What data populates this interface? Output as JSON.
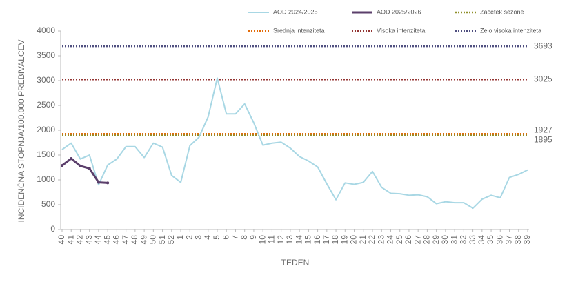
{
  "chart_data": {
    "type": "line",
    "ylabel": "INCIDENČNA  STOPNJA/100.000  PREBIVALCEV",
    "xlabel": "TEDEN",
    "categories": [
      "40",
      "41",
      "42",
      "43",
      "44",
      "45",
      "46",
      "47",
      "48",
      "49",
      "50",
      "51",
      "52",
      "1",
      "2",
      "3",
      "4",
      "5",
      "6",
      "7",
      "8",
      "9",
      "10",
      "11",
      "12",
      "13",
      "14",
      "15",
      "16",
      "17",
      "18",
      "19",
      "20",
      "21",
      "22",
      "23",
      "24",
      "25",
      "26",
      "27",
      "28",
      "29",
      "30",
      "31",
      "32",
      "33",
      "34",
      "35",
      "36",
      "37",
      "38",
      "39"
    ],
    "series": [
      {
        "name": "AOD 2024/2025",
        "color": "#a8d7e4",
        "width": 2,
        "values": [
          1610,
          1740,
          1420,
          1500,
          900,
          1300,
          1420,
          1670,
          1670,
          1450,
          1740,
          1660,
          1090,
          950,
          1690,
          1860,
          2270,
          3050,
          2330,
          2330,
          2530,
          2150,
          1700,
          1740,
          1760,
          1640,
          1470,
          1380,
          1260,
          920,
          600,
          940,
          910,
          950,
          1170,
          850,
          730,
          720,
          690,
          700,
          660,
          520,
          560,
          540,
          540,
          430,
          610,
          690,
          640,
          1050,
          1110,
          1200
        ]
      },
      {
        "name": "AOD 2025/2026",
        "color": "#5b3f6b",
        "width": 3,
        "values": [
          1290,
          1430,
          1280,
          1230,
          950,
          940,
          null,
          null,
          null,
          null,
          null,
          null,
          null,
          null,
          null,
          null,
          null,
          null,
          null,
          null,
          null,
          null,
          null,
          null,
          null,
          null,
          null,
          null,
          null,
          null,
          null,
          null,
          null,
          null,
          null,
          null,
          null,
          null,
          null,
          null,
          null,
          null,
          null,
          null,
          null,
          null,
          null,
          null,
          null,
          null,
          null,
          null
        ]
      }
    ],
    "thresholds": [
      {
        "name": "Začetek sezone",
        "color": "#8f8f2a",
        "value": 1895
      },
      {
        "name": "Srednja intenziteta",
        "color": "#e36c0a",
        "value": 1927
      },
      {
        "name": "Visoka intenziteta",
        "color": "#943634",
        "value": 3025
      },
      {
        "name": "Zelo visoka intenziteta",
        "color": "#4f4f80",
        "value": 3693
      }
    ],
    "ylim": [
      0,
      4000
    ],
    "yticks": [
      0,
      500,
      1000,
      1500,
      2000,
      2500,
      3000,
      3500,
      4000
    ]
  }
}
